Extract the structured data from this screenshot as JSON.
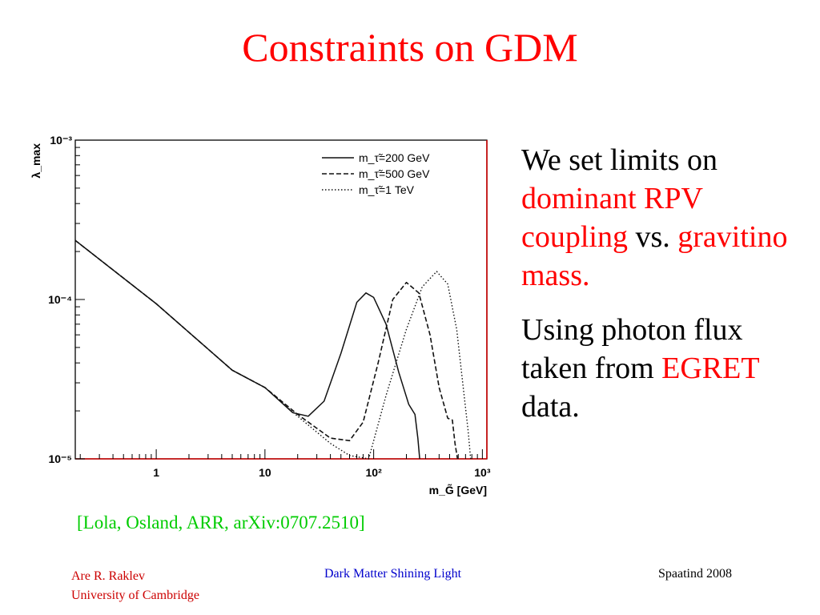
{
  "slide": {
    "title": "Constraints on GDM",
    "bullets": [
      {
        "parts": [
          {
            "text": "We set limits on ",
            "accent": false
          },
          {
            "text": "dominant RPV coupling",
            "accent": true
          },
          {
            "text": " vs. ",
            "accent": false
          },
          {
            "text": "gravitino mass.",
            "accent": true
          }
        ]
      },
      {
        "parts": [
          {
            "text": "Using photon flux taken from ",
            "accent": false
          },
          {
            "text": "EGRET",
            "accent": true
          },
          {
            "text": " data.",
            "accent": false
          }
        ]
      }
    ],
    "citation": "[Lola, Osland, ARR, arXiv:0707.2510]",
    "footer": {
      "author": "Are R. Raklev",
      "affiliation": "University of Cambridge",
      "center": "Dark Matter Shining Light",
      "right": "Spaatind 2008"
    }
  },
  "colors": {
    "title": "#ff0000",
    "accent": "#ff0000",
    "citation": "#00cc00",
    "footer_left": "#cc0000",
    "footer_center": "#0000cc",
    "frame_highlight": "#cc0000"
  },
  "chart_data": {
    "type": "line",
    "xlabel": "m_G̃ [GeV]",
    "ylabel": "λ_max",
    "x_scale": "log",
    "y_scale": "log",
    "xlim": [
      0.18,
      1100
    ],
    "ylim": [
      1e-05,
      0.001
    ],
    "x_ticks": [
      {
        "value": 1,
        "label": "1"
      },
      {
        "value": 10,
        "label": "10"
      },
      {
        "value": 100,
        "label": "10²"
      },
      {
        "value": 1000,
        "label": "10³"
      }
    ],
    "y_ticks": [
      {
        "value": 1e-05,
        "label": "10⁻⁵"
      },
      {
        "value": 0.0001,
        "label": "10⁻⁴"
      },
      {
        "value": 0.001,
        "label": "10⁻³"
      }
    ],
    "legend_position": "top-right",
    "series": [
      {
        "name": "m_τ̃=200 GeV",
        "dash": "solid",
        "points": [
          [
            0.18,
            0.000235
          ],
          [
            1,
            9.4e-05
          ],
          [
            5,
            3.6e-05
          ],
          [
            10,
            2.8e-05
          ],
          [
            18,
            1.95e-05
          ],
          [
            25,
            1.85e-05
          ],
          [
            35,
            2.3e-05
          ],
          [
            50,
            4.6e-05
          ],
          [
            70,
            9.6e-05
          ],
          [
            85,
            0.00011
          ],
          [
            100,
            0.000103
          ],
          [
            130,
            7e-05
          ],
          [
            170,
            3.5e-05
          ],
          [
            210,
            2.2e-05
          ],
          [
            240,
            1.9e-05
          ],
          [
            255,
            1.35e-05
          ],
          [
            265,
            1e-05
          ]
        ]
      },
      {
        "name": "m_τ̃=500 GeV",
        "dash": "dashed",
        "points": [
          [
            0.18,
            0.000235
          ],
          [
            1,
            9.4e-05
          ],
          [
            5,
            3.6e-05
          ],
          [
            10,
            2.8e-05
          ],
          [
            20,
            1.9e-05
          ],
          [
            40,
            1.35e-05
          ],
          [
            60,
            1.3e-05
          ],
          [
            80,
            1.7e-05
          ],
          [
            110,
            4e-05
          ],
          [
            150,
            0.0001
          ],
          [
            200,
            0.000128
          ],
          [
            260,
            0.00011
          ],
          [
            330,
            6e-05
          ],
          [
            400,
            2.8e-05
          ],
          [
            480,
            1.8e-05
          ],
          [
            530,
            1.75e-05
          ],
          [
            560,
            1.25e-05
          ],
          [
            590,
            1e-05
          ]
        ]
      },
      {
        "name": "m_τ̃=1 TeV",
        "dash": "dotted",
        "points": [
          [
            0.18,
            0.000235
          ],
          [
            1,
            9.4e-05
          ],
          [
            5,
            3.6e-05
          ],
          [
            10,
            2.8e-05
          ],
          [
            20,
            1.85e-05
          ],
          [
            40,
            1.25e-05
          ],
          [
            60,
            1.05e-05
          ],
          [
            90,
            1e-05
          ],
          [
            130,
            2.5e-05
          ],
          [
            200,
            6.5e-05
          ],
          [
            280,
            0.00012
          ],
          [
            380,
            0.00015
          ],
          [
            480,
            0.000125
          ],
          [
            580,
            6.5e-05
          ],
          [
            680,
            2.5e-05
          ],
          [
            740,
            1.5e-05
          ],
          [
            780,
            1e-05
          ]
        ]
      }
    ]
  }
}
